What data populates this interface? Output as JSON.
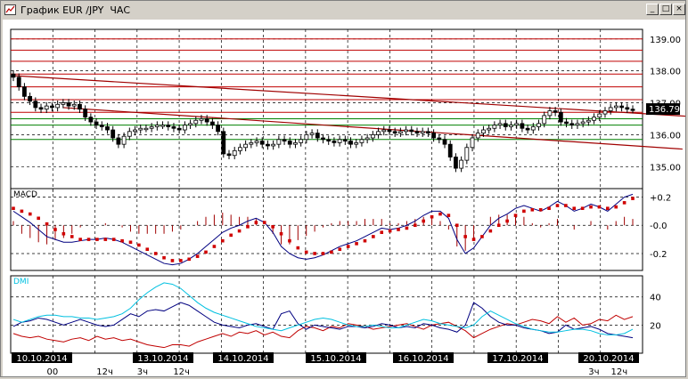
{
  "window": {
    "title": "График EUR /JPY  ЧАС",
    "minimize_label": "_",
    "maximize_label": "□",
    "close_label": "×"
  },
  "colors": {
    "background": "#ffffff",
    "grid": "#000000",
    "price": "#000000",
    "resistance_lines": "#c00000",
    "support_lines": "#008000",
    "trend_lines": "#a00000",
    "macd_line": "#000080",
    "macd_signal": "#d00000",
    "macd_hist": "#a00000",
    "dmi_adx": "#00c0e0",
    "dmi_plus": "#000080",
    "dmi_minus": "#c00000",
    "last_price_bg": "#000000",
    "last_price_fg": "#ffffff"
  },
  "chart_data": [
    {
      "type": "candlestick",
      "symbol": "EUR/JPY",
      "timeframe": "H1",
      "ylim": [
        134.2,
        139.3
      ],
      "yticks": [
        "139.00",
        "138.00",
        "137.00",
        "136.00",
        "135.00"
      ],
      "last_price": "136.79",
      "hlines_red": [
        139.0,
        138.65,
        138.3,
        137.9,
        137.5,
        137.1,
        136.7
      ],
      "hlines_green": [
        136.5,
        136.3,
        135.85
      ],
      "trend_lines": [
        {
          "x1": 0,
          "y1": 137.85,
          "x2": 134,
          "y2": 136.45
        },
        {
          "x1": 9,
          "y1": 136.85,
          "x2": 121,
          "y2": 135.55
        }
      ],
      "closes": [
        137.8,
        137.5,
        137.2,
        137.05,
        136.85,
        136.8,
        136.9,
        136.85,
        136.95,
        137.0,
        136.9,
        136.95,
        136.8,
        136.55,
        136.4,
        136.3,
        136.25,
        136.15,
        135.9,
        135.7,
        135.95,
        136.1,
        136.15,
        136.2,
        136.2,
        136.25,
        136.3,
        136.3,
        136.25,
        136.2,
        136.15,
        136.3,
        136.35,
        136.45,
        136.5,
        136.4,
        136.3,
        136.1,
        135.4,
        135.35,
        135.5,
        135.6,
        135.7,
        135.75,
        135.8,
        135.7,
        135.65,
        135.7,
        135.85,
        135.8,
        135.7,
        135.75,
        135.85,
        136.0,
        136.05,
        135.9,
        135.85,
        135.8,
        135.75,
        135.85,
        135.8,
        135.7,
        135.75,
        135.85,
        135.9,
        136.0,
        136.1,
        136.15,
        136.1,
        136.05,
        136.1,
        136.15,
        136.1,
        136.05,
        136.1,
        136.05,
        135.9,
        135.85,
        135.7,
        135.3,
        134.95,
        135.2,
        135.6,
        135.9,
        136.05,
        136.15,
        136.2,
        136.3,
        136.35,
        136.25,
        136.3,
        136.35,
        136.2,
        136.15,
        136.25,
        136.35,
        136.6,
        136.75,
        136.7,
        136.4,
        136.35,
        136.3,
        136.35,
        136.4,
        136.45,
        136.55,
        136.65,
        136.75,
        136.85,
        136.9,
        136.85,
        136.8,
        136.79
      ],
      "dates": [
        "10.10.2014",
        "13.10.2014",
        "14.10.2014",
        "15.10.2014",
        "16.10.2014",
        "17.10.2014",
        "20.10.2014"
      ],
      "hour_labels": [
        {
          "text": "00",
          "pos": 8
        },
        {
          "text": "12ч",
          "pos": 19
        },
        {
          "text": "3ч",
          "pos": 28
        },
        {
          "text": "12ч",
          "pos": 36
        },
        {
          "text": "3ч",
          "pos": 128
        },
        {
          "text": "12ч",
          "pos": 133
        }
      ]
    },
    {
      "type": "macd",
      "title": "MACD",
      "ylim": [
        -0.32,
        0.26
      ],
      "yticks": [
        "+0.2",
        "-0.0",
        "-0.2"
      ],
      "macd": [
        0.1,
        0.06,
        0.02,
        -0.03,
        -0.08,
        -0.1,
        -0.12,
        -0.12,
        -0.11,
        -0.1,
        -0.1,
        -0.09,
        -0.1,
        -0.12,
        -0.15,
        -0.18,
        -0.21,
        -0.24,
        -0.27,
        -0.28,
        -0.27,
        -0.24,
        -0.2,
        -0.15,
        -0.1,
        -0.05,
        -0.02,
        0.0,
        0.03,
        0.05,
        0.02,
        -0.05,
        -0.15,
        -0.2,
        -0.23,
        -0.24,
        -0.23,
        -0.21,
        -0.18,
        -0.15,
        -0.13,
        -0.11,
        -0.08,
        -0.05,
        -0.02,
        -0.03,
        -0.02,
        0.0,
        0.03,
        0.07,
        0.1,
        0.1,
        0.05,
        -0.1,
        -0.2,
        -0.16,
        -0.08,
        0.0,
        0.05,
        0.08,
        0.12,
        0.14,
        0.12,
        0.1,
        0.13,
        0.17,
        0.14,
        0.1,
        0.12,
        0.15,
        0.13,
        0.1,
        0.15,
        0.2,
        0.22
      ],
      "signal": [
        0.12,
        0.1,
        0.08,
        0.05,
        0.01,
        -0.03,
        -0.06,
        -0.08,
        -0.1,
        -0.1,
        -0.1,
        -0.1,
        -0.1,
        -0.11,
        -0.12,
        -0.14,
        -0.17,
        -0.2,
        -0.23,
        -0.25,
        -0.25,
        -0.24,
        -0.22,
        -0.19,
        -0.15,
        -0.11,
        -0.07,
        -0.04,
        -0.01,
        0.02,
        0.02,
        -0.01,
        -0.06,
        -0.11,
        -0.16,
        -0.19,
        -0.2,
        -0.2,
        -0.19,
        -0.17,
        -0.15,
        -0.13,
        -0.11,
        -0.08,
        -0.05,
        -0.04,
        -0.03,
        -0.02,
        0.0,
        0.03,
        0.06,
        0.08,
        0.07,
        0.0,
        -0.08,
        -0.1,
        -0.08,
        -0.04,
        0.0,
        0.03,
        0.07,
        0.1,
        0.11,
        0.11,
        0.12,
        0.14,
        0.14,
        0.12,
        0.12,
        0.13,
        0.13,
        0.12,
        0.13,
        0.16,
        0.19
      ],
      "hist": [
        0.02,
        -0.04,
        -0.06,
        -0.08,
        -0.09,
        -0.07,
        -0.06,
        -0.04,
        -0.01,
        0.0,
        0.0,
        0.01,
        0.0,
        -0.01,
        -0.03,
        -0.04,
        -0.04,
        -0.04,
        -0.04,
        -0.03,
        -0.02,
        0.0,
        0.02,
        0.04,
        0.05,
        0.06,
        0.05,
        0.04,
        0.04,
        0.03,
        0.0,
        -0.04,
        -0.09,
        -0.09,
        -0.07,
        -0.05,
        -0.03,
        -0.01,
        0.01,
        0.02,
        0.02,
        0.02,
        0.03,
        0.03,
        0.03,
        0.01,
        0.01,
        0.02,
        0.03,
        0.04,
        0.04,
        0.02,
        -0.02,
        -0.1,
        -0.12,
        -0.06,
        0.0,
        0.04,
        0.05,
        0.05,
        0.05,
        0.04,
        0.01,
        -0.01,
        0.01,
        0.03,
        0.0,
        -0.02,
        0.0,
        0.02,
        0.0,
        -0.02,
        0.02,
        0.04,
        0.03
      ]
    },
    {
      "type": "dmi",
      "title": "DMI",
      "ylim": [
        0,
        55
      ],
      "yticks": [
        "40",
        "20"
      ],
      "adx": [
        24,
        22,
        24,
        26,
        27,
        27,
        26,
        26,
        25,
        25,
        24,
        25,
        26,
        28,
        32,
        38,
        43,
        47,
        50,
        49,
        46,
        41,
        36,
        32,
        29,
        27,
        25,
        23,
        21,
        19,
        18,
        17,
        16,
        18,
        20,
        22,
        24,
        25,
        24,
        22,
        20,
        19,
        19,
        20,
        19,
        18,
        18,
        20,
        22,
        24,
        23,
        21,
        20,
        19,
        18,
        20,
        26,
        30,
        27,
        24,
        21,
        19,
        17,
        16,
        15,
        15,
        16,
        17,
        17,
        16,
        14,
        13,
        13,
        14,
        17
      ],
      "plus_di": [
        19,
        22,
        23,
        25,
        24,
        22,
        20,
        22,
        24,
        22,
        20,
        19,
        20,
        24,
        28,
        26,
        30,
        31,
        30,
        33,
        36,
        34,
        30,
        26,
        22,
        20,
        19,
        18,
        20,
        21,
        19,
        17,
        28,
        30,
        21,
        17,
        20,
        19,
        18,
        17,
        19,
        19,
        18,
        19,
        21,
        20,
        18,
        19,
        18,
        21,
        20,
        18,
        17,
        15,
        20,
        36,
        32,
        26,
        22,
        20,
        20,
        18,
        17,
        16,
        14,
        15,
        20,
        17,
        18,
        19,
        17,
        14,
        13,
        12,
        11
      ],
      "minus_di": [
        14,
        12,
        11,
        12,
        10,
        9,
        8,
        10,
        11,
        9,
        12,
        10,
        11,
        9,
        10,
        8,
        6,
        5,
        4,
        6,
        6,
        5,
        8,
        10,
        12,
        14,
        12,
        15,
        14,
        16,
        13,
        15,
        12,
        11,
        16,
        19,
        18,
        16,
        19,
        18,
        21,
        20,
        19,
        17,
        18,
        19,
        20,
        21,
        19,
        17,
        20,
        21,
        22,
        19,
        16,
        11,
        14,
        17,
        19,
        21,
        20,
        22,
        24,
        23,
        21,
        26,
        22,
        25,
        20,
        21,
        24,
        23,
        27,
        24,
        26
      ]
    }
  ]
}
